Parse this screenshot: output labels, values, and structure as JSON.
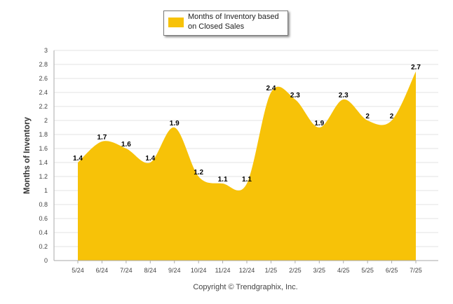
{
  "legend": {
    "label": "Months of Inventory based on Closed Sales"
  },
  "footer": {
    "copyright": "Copyright © Trendgraphix, Inc."
  },
  "colors": {
    "area": "#f7c208",
    "grid": "#e3e3e3",
    "axis": "#aaaaaa"
  },
  "chart_data": {
    "type": "area",
    "ylabel": "Months of Inventory",
    "xlabel": "",
    "ylim": [
      0,
      3
    ],
    "ytick_step": 0.2,
    "yticks": [
      "0",
      "0.2",
      "0.4",
      "0.6",
      "0.8",
      "1",
      "1.2",
      "1.4",
      "1.6",
      "1.8",
      "2",
      "2.2",
      "2.4",
      "2.6",
      "2.8",
      "3"
    ],
    "grid": true,
    "legend_position": "top-center",
    "categories": [
      "5/24",
      "6/24",
      "7/24",
      "8/24",
      "9/24",
      "10/24",
      "11/24",
      "12/24",
      "1/25",
      "2/25",
      "3/25",
      "4/25",
      "5/25",
      "6/25",
      "7/25"
    ],
    "series": [
      {
        "name": "Months of Inventory based on Closed Sales",
        "values": [
          1.4,
          1.7,
          1.6,
          1.4,
          1.9,
          1.2,
          1.1,
          1.1,
          2.4,
          2.3,
          1.9,
          2.3,
          2,
          2,
          2.7
        ],
        "labels": [
          "1.4",
          "1.7",
          "1.6",
          "1.4",
          "1.9",
          "1.2",
          "1.1",
          "1.1",
          "2.4",
          "2.3",
          "1.9",
          "2.3",
          "2",
          "2",
          "2.7"
        ]
      }
    ]
  }
}
